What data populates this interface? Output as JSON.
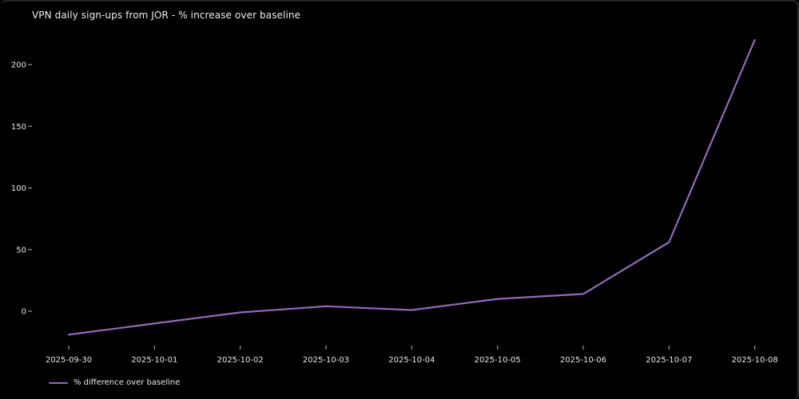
{
  "window": {
    "background": "#000000",
    "border_top_color": "#262626",
    "border_right_color": "#303030"
  },
  "colors": {
    "line": "#9467bd",
    "text": "#e8e8e8",
    "tick": "#b3b3b3",
    "background": "#000000"
  },
  "chart_data": {
    "type": "line",
    "title": "VPN daily sign-ups from JOR - % increase over baseline",
    "xlabel": "",
    "ylabel": "",
    "categories": [
      "2025-09-30",
      "2025-10-01",
      "2025-10-02",
      "2025-10-03",
      "2025-10-04",
      "2025-10-05",
      "2025-10-06",
      "2025-10-07",
      "2025-10-08"
    ],
    "series": [
      {
        "name": "% difference over baseline",
        "color": "#9467bd",
        "values": [
          -19,
          -10,
          -1,
          4,
          1,
          10,
          14,
          56,
          220
        ]
      }
    ],
    "yticks": [
      0,
      50,
      100,
      150,
      200
    ],
    "ylim": [
      -31,
      232
    ],
    "grid": false,
    "legend_position": "below-axes-bottom-left",
    "plot_background": "#000000"
  }
}
